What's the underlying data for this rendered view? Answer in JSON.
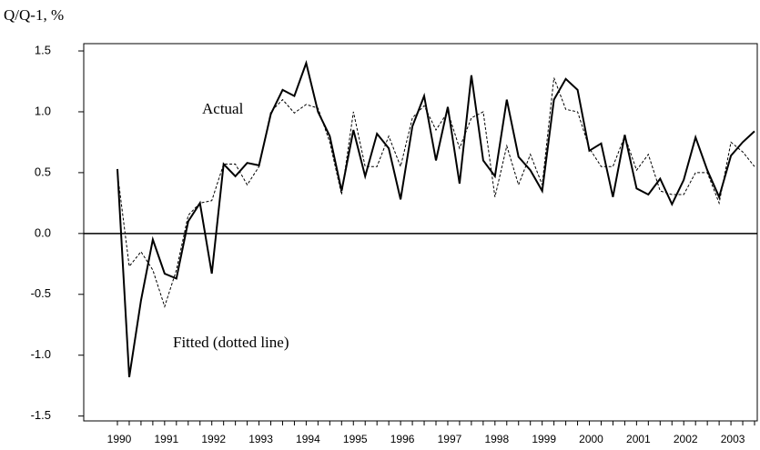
{
  "chart_data": {
    "type": "line",
    "y_label": "Q/Q-1, %",
    "categories": [
      "1990",
      null,
      null,
      null,
      "1991",
      null,
      null,
      null,
      "1992",
      null,
      null,
      null,
      "1993",
      null,
      null,
      null,
      "1994",
      null,
      null,
      null,
      "1995",
      null,
      null,
      null,
      "1996",
      null,
      null,
      null,
      "1997",
      null,
      null,
      null,
      "1998",
      null,
      null,
      null,
      "1999",
      null,
      null,
      null,
      "2000",
      null,
      null,
      null,
      "2001",
      null,
      null,
      null,
      "2002",
      null,
      null,
      null,
      "2003",
      null,
      null
    ],
    "series": [
      {
        "name": "Actual",
        "color": "#000000",
        "dashed": false,
        "values": [
          0.53,
          -1.18,
          -0.55,
          -0.05,
          -0.33,
          -0.37,
          0.1,
          0.25,
          -0.33,
          0.57,
          0.47,
          0.58,
          0.56,
          0.98,
          1.18,
          1.13,
          1.4,
          1.0,
          0.8,
          0.35,
          0.85,
          0.47,
          0.82,
          0.7,
          0.28,
          0.88,
          1.13,
          0.6,
          1.04,
          0.41,
          1.3,
          0.6,
          0.47,
          1.1,
          0.63,
          0.52,
          0.35,
          1.1,
          1.27,
          1.18,
          0.68,
          0.74,
          0.3,
          0.81,
          0.37,
          0.32,
          0.45,
          0.24,
          0.44,
          0.79,
          0.52,
          0.3,
          0.64,
          0.75,
          0.84
        ]
      },
      {
        "name": "Fitted (dotted line)",
        "color": "#000000",
        "dashed": true,
        "values": [
          0.5,
          -0.27,
          -0.15,
          -0.3,
          -0.6,
          -0.3,
          0.15,
          0.25,
          0.27,
          0.57,
          0.57,
          0.4,
          0.55,
          1.0,
          1.1,
          0.99,
          1.06,
          1.03,
          0.75,
          0.32,
          1.0,
          0.55,
          0.55,
          0.8,
          0.55,
          0.95,
          1.05,
          0.85,
          1.0,
          0.7,
          0.95,
          1.0,
          0.3,
          0.72,
          0.4,
          0.65,
          0.4,
          1.28,
          1.02,
          1.0,
          0.7,
          0.55,
          0.55,
          0.8,
          0.52,
          0.65,
          0.35,
          0.32,
          0.32,
          0.5,
          0.5,
          0.25,
          0.75,
          0.67,
          0.55
        ]
      }
    ],
    "ylim": [
      -1.54,
      1.56
    ],
    "yticks": [
      1.5,
      {
        "value": 1,
        "label": "1.0"
      },
      0.5,
      {
        "value": 0,
        "label": "0.0"
      },
      -0.5,
      {
        "value": -1,
        "label": "-1.0"
      },
      -1.5
    ],
    "zero_line": true
  }
}
